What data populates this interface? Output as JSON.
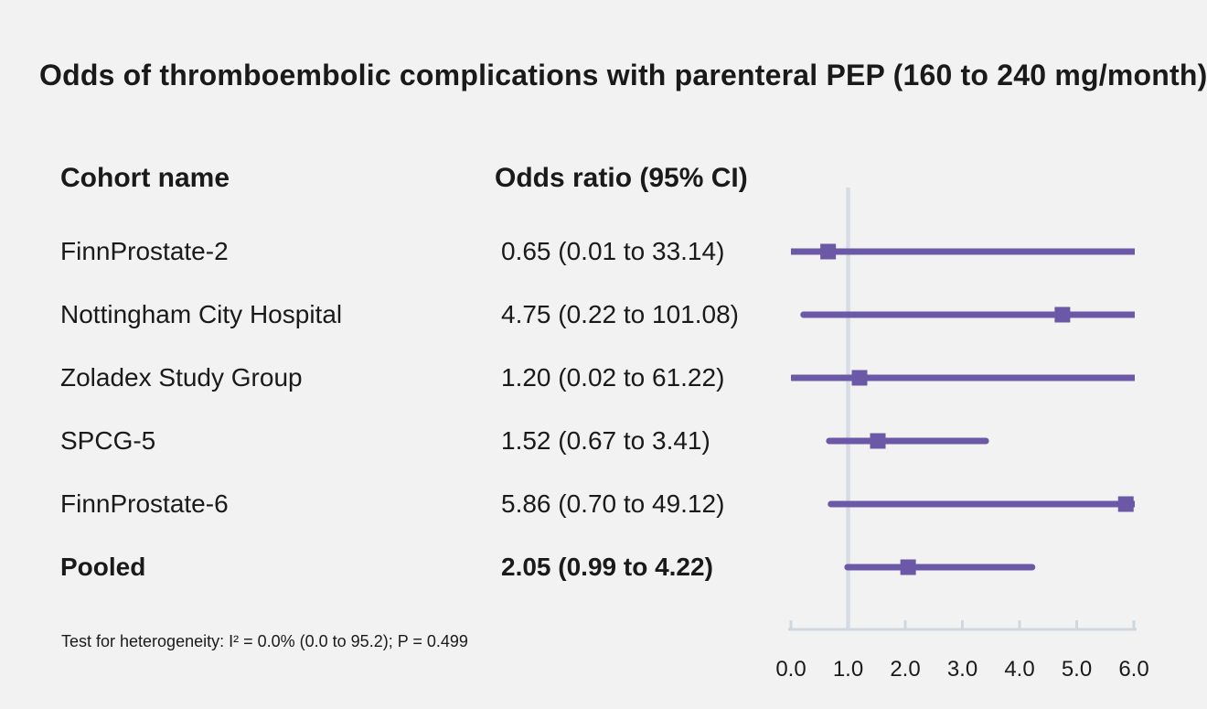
{
  "title": "Odds of thromboembolic complications with parenteral PEP (160 to 240 mg/month)",
  "table": {
    "col1_header": "Cohort name",
    "col2_header": "Odds ratio (95% CI)",
    "rows": [
      {
        "name": "FinnProstate-2",
        "or_ci": "0.65 (0.01 to 33.14)"
      },
      {
        "name": "Nottingham City Hospital",
        "or_ci": "4.75 (0.22 to 101.08)"
      },
      {
        "name": "Zoladex Study Group",
        "or_ci": "1.20 (0.02 to 61.22)"
      },
      {
        "name": "SPCG-5",
        "or_ci": "1.52 (0.67 to 3.41)"
      },
      {
        "name": "FinnProstate-6",
        "or_ci": "5.86 (0.70 to 49.12)"
      },
      {
        "name": "Pooled",
        "or_ci": "2.05 (0.99 to 4.22)"
      }
    ]
  },
  "footnote": "Test for heterogeneity: I² = 0.0% (0.0 to 95.2); P = 0.499",
  "chart_data": {
    "type": "scatter",
    "subtype": "forest-plot",
    "title": "Odds of thromboembolic complications with parenteral PEP (160 to 240 mg/month)",
    "xlabel": "",
    "ylabel": "",
    "x_range": [
      0.0,
      6.0
    ],
    "x_ticks": [
      0.0,
      1.0,
      2.0,
      3.0,
      4.0,
      5.0,
      6.0
    ],
    "x_tick_labels": [
      "0.0",
      "1.0",
      "2.0",
      "3.0",
      "4.0",
      "5.0",
      "6.0"
    ],
    "reference_line_x": 1.0,
    "grid": false,
    "series": [
      {
        "label": "FinnProstate-2",
        "estimate": 0.65,
        "ci_low": 0.01,
        "ci_high": 33.14,
        "pooled": false
      },
      {
        "label": "Nottingham City Hospital",
        "estimate": 4.75,
        "ci_low": 0.22,
        "ci_high": 101.08,
        "pooled": false
      },
      {
        "label": "Zoladex Study Group",
        "estimate": 1.2,
        "ci_low": 0.02,
        "ci_high": 61.22,
        "pooled": false
      },
      {
        "label": "SPCG-5",
        "estimate": 1.52,
        "ci_low": 0.67,
        "ci_high": 3.41,
        "pooled": false
      },
      {
        "label": "FinnProstate-6",
        "estimate": 5.86,
        "ci_low": 0.7,
        "ci_high": 49.12,
        "pooled": false
      },
      {
        "label": "Pooled",
        "estimate": 2.05,
        "ci_low": 0.99,
        "ci_high": 4.22,
        "pooled": true
      }
    ],
    "heterogeneity_note": "Test for heterogeneity: I² = 0.0% (0.0 to 95.2); P = 0.499",
    "colors": {
      "marker": "#6b59a7",
      "ci_line": "#6b59a7",
      "reference_line": "#d7dce4",
      "axis": "#d0d7df",
      "background": "#f2f2f2",
      "text": "#1a1a1a"
    }
  }
}
